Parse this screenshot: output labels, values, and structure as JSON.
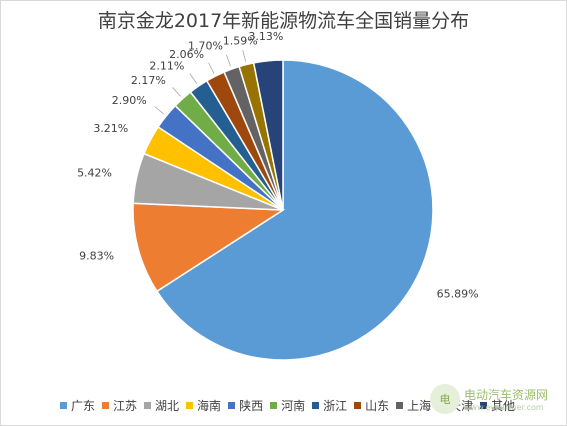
{
  "chart_data": {
    "type": "pie",
    "title": "南京金龙2017年新能源物流车全国销量分布",
    "slices": [
      {
        "name": "广东",
        "value": 65.89,
        "label": "65.89%",
        "color": "#5b9bd5"
      },
      {
        "name": "江苏",
        "value": 9.83,
        "label": "9.83%",
        "color": "#ed7d31"
      },
      {
        "name": "湖北",
        "value": 5.42,
        "label": "5.42%",
        "color": "#a5a5a5"
      },
      {
        "name": "海南",
        "value": 3.21,
        "label": "3.21%",
        "color": "#ffc000"
      },
      {
        "name": "陕西",
        "value": 2.9,
        "label": "2.90%",
        "color": "#4472c4"
      },
      {
        "name": "河南",
        "value": 2.17,
        "label": "2.17%",
        "color": "#70ad47"
      },
      {
        "name": "浙江",
        "value": 2.11,
        "label": "2.11%",
        "color": "#255e91"
      },
      {
        "name": "山东",
        "value": 2.06,
        "label": "2.06%",
        "color": "#9e480e"
      },
      {
        "name": "上海",
        "value": 1.7,
        "label": "1.70%",
        "color": "#636363"
      },
      {
        "name": "天津",
        "value": 1.59,
        "label": "1.59%",
        "color": "#997300"
      },
      {
        "name": "其他",
        "value": 3.13,
        "label": "3.13%",
        "color": "#264478"
      }
    ],
    "start_angle_deg": 0,
    "direction": "clockwise",
    "legend_position": "bottom"
  },
  "watermark": {
    "logo_text": "电",
    "title": "电动汽车资源网",
    "url": "www.evpartner.com"
  }
}
